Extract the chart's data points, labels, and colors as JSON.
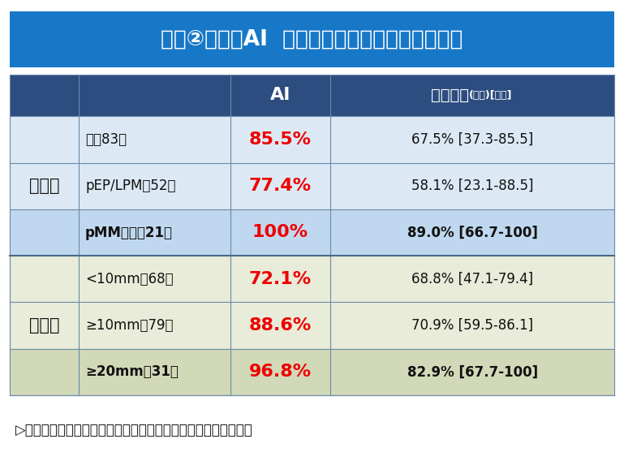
{
  "title": "結果②：鑑別AI  症例の特徴による正診率の比較",
  "title_bg": "#1878c8",
  "title_color": "#ffffff",
  "title_fontsize": 19,
  "header_bg": "#2d4d80",
  "header_color": "#ffffff",
  "header_ai": "AI",
  "header_doc_main": "内視鏡医",
  "header_doc_small": "(平均)[範囲]",
  "row_bg_light_blue": "#dce9f5",
  "row_bg_highlight_blue": "#c0d8ef",
  "row_bg_light_green": "#e8ecd8",
  "row_bg_highlight_green": "#d2d9b8",
  "ai_color": "#ee0000",
  "doc_color": "#111111",
  "group1_label": "深達度",
  "group2_label": "病変径",
  "rows": [
    {
      "group": "深達度",
      "category": "癌：83例",
      "ai_value": "85.5%",
      "doc_value": "67.5% [37.3-85.5]",
      "highlight": false,
      "section": 0
    },
    {
      "group": "深達度",
      "category": "pEP/LPM：52例",
      "ai_value": "77.4%",
      "doc_value": "58.1% [23.1-88.5]",
      "highlight": false,
      "section": 0
    },
    {
      "group": "深達度",
      "category": "pMM以深：21例",
      "ai_value": "100%",
      "doc_value": "89.0% [66.7-100]",
      "highlight": true,
      "section": 0
    },
    {
      "group": "病変径",
      "category": "<10mm：68例",
      "ai_value": "72.1%",
      "doc_value": "68.8% [47.1-79.4]",
      "highlight": false,
      "section": 1
    },
    {
      "group": "病変径",
      "category": "≥10mm：79例",
      "ai_value": "88.6%",
      "doc_value": "70.9% [59.5-86.1]",
      "highlight": false,
      "section": 1
    },
    {
      "group": "病変径",
      "category": "≥20mm：31例",
      "ai_value": "96.8%",
      "doc_value": "82.9% [67.7-100]",
      "highlight": true,
      "section": 1
    }
  ],
  "footer_text": "▷より正確な判断をすべき病変について，特に正診率が高かった",
  "footer_color": "#111111",
  "footer_fontsize": 12,
  "bg_color": "#ffffff",
  "border_color": "#6a8aaa",
  "border_lw": 0.8,
  "section_border_color": "#4a6a8a",
  "section_border_lw": 1.5
}
